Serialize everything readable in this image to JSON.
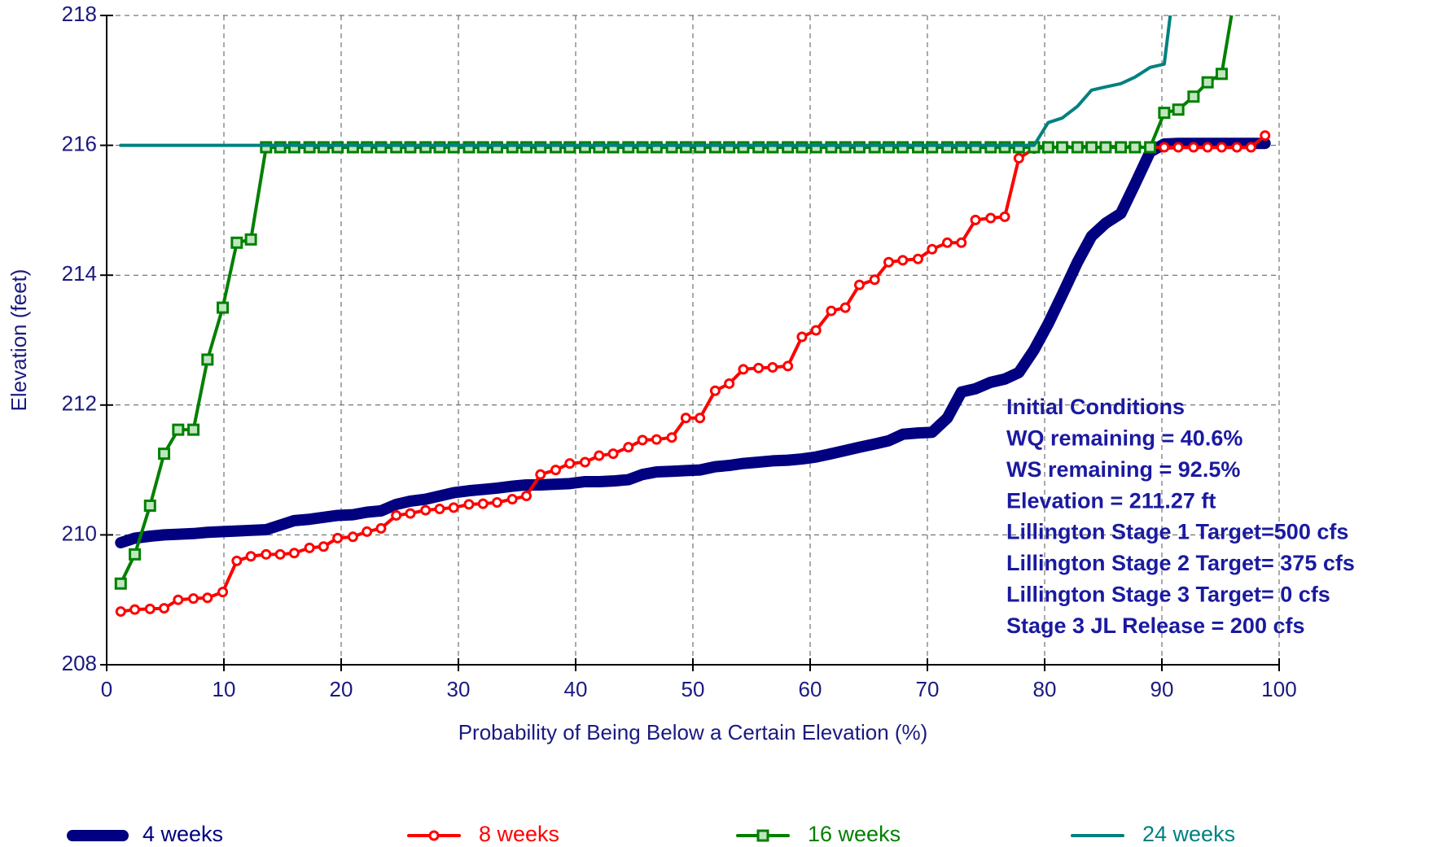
{
  "chart_data": {
    "type": "line",
    "xlabel": "Probability of Being Below a Certain Elevation (%)",
    "ylabel": "Elevation (feet)",
    "xlim": [
      0,
      100
    ],
    "xticks": [
      0,
      10,
      20,
      30,
      40,
      50,
      60,
      70,
      80,
      90,
      100
    ],
    "ylim": [
      208,
      218
    ],
    "yticks": [
      208,
      210,
      212,
      214,
      216,
      218
    ],
    "grid": true,
    "legend": "bottom",
    "annotations": [
      "Initial Conditions",
      "WQ remaining = 40.6%",
      "WS remaining = 92.5%",
      "Elevation = 211.27 ft",
      "Lillington Stage 1 Target=500 cfs",
      "Lillington Stage 2 Target= 375 cfs",
      "Lillington Stage 3 Target= 0 cfs",
      "Stage 3 JL Release = 200 cfs"
    ],
    "x": [
      1.2,
      2.4,
      3.7,
      4.9,
      6.1,
      7.4,
      8.6,
      9.9,
      11.1,
      12.3,
      13.6,
      14.8,
      16.0,
      17.3,
      18.5,
      19.7,
      21.0,
      22.2,
      23.4,
      24.7,
      25.9,
      27.2,
      28.4,
      29.6,
      30.9,
      32.1,
      33.3,
      34.6,
      35.8,
      37.0,
      38.3,
      39.5,
      40.8,
      42.0,
      43.2,
      44.5,
      45.7,
      46.9,
      48.2,
      49.4,
      50.6,
      51.9,
      53.1,
      54.3,
      55.6,
      56.8,
      58.1,
      59.3,
      60.5,
      61.8,
      63.0,
      64.2,
      65.5,
      66.7,
      67.9,
      69.2,
      70.4,
      71.7,
      72.9,
      74.1,
      75.4,
      76.6,
      77.8,
      79.1,
      80.3,
      81.5,
      82.8,
      84.0,
      85.2,
      86.5,
      87.7,
      89.0,
      90.2,
      91.4,
      92.7,
      93.9,
      95.1,
      96.4,
      97.6,
      98.8
    ],
    "series": [
      {
        "name": "4 weeks",
        "color": "#000080",
        "width": 14,
        "marker": "none",
        "values": [
          209.88,
          209.95,
          209.98,
          210.0,
          210.01,
          210.02,
          210.04,
          210.05,
          210.06,
          210.07,
          210.08,
          210.15,
          210.22,
          210.24,
          210.27,
          210.3,
          210.31,
          210.35,
          210.37,
          210.47,
          210.52,
          210.55,
          210.6,
          210.65,
          210.68,
          210.7,
          210.72,
          210.75,
          210.77,
          210.77,
          210.78,
          210.79,
          210.82,
          210.82,
          210.83,
          210.85,
          210.93,
          210.97,
          210.98,
          210.99,
          211.0,
          211.05,
          211.07,
          211.1,
          211.12,
          211.14,
          211.15,
          211.17,
          211.2,
          211.25,
          211.3,
          211.35,
          211.4,
          211.45,
          211.55,
          211.57,
          211.58,
          211.8,
          212.2,
          212.25,
          212.35,
          212.4,
          212.5,
          212.85,
          213.25,
          213.7,
          214.2,
          214.6,
          214.8,
          214.95,
          215.4,
          215.9,
          216.02,
          216.03,
          216.03,
          216.03,
          216.03,
          216.03,
          216.03,
          216.03
        ]
      },
      {
        "name": "8 weeks",
        "color": "#ff0000",
        "width": 4,
        "marker": "circle",
        "values": [
          208.82,
          208.85,
          208.86,
          208.87,
          209.0,
          209.02,
          209.03,
          209.12,
          209.6,
          209.67,
          209.7,
          209.7,
          209.72,
          209.8,
          209.82,
          209.95,
          209.97,
          210.05,
          210.1,
          210.3,
          210.33,
          210.38,
          210.4,
          210.42,
          210.47,
          210.48,
          210.5,
          210.55,
          210.6,
          210.93,
          211.0,
          211.1,
          211.12,
          211.22,
          211.25,
          211.35,
          211.46,
          211.47,
          211.5,
          211.8,
          211.8,
          212.22,
          212.33,
          212.55,
          212.57,
          212.58,
          212.6,
          213.05,
          213.15,
          213.45,
          213.5,
          213.85,
          213.93,
          214.2,
          214.23,
          214.25,
          214.4,
          214.5,
          214.5,
          214.85,
          214.88,
          214.9,
          215.8,
          215.95,
          215.97,
          215.97,
          215.97,
          215.97,
          215.97,
          215.97,
          215.97,
          215.97,
          215.97,
          215.97,
          215.97,
          215.97,
          215.97,
          215.97,
          215.97,
          216.15
        ]
      },
      {
        "name": "16 weeks",
        "color": "#008000",
        "width": 4,
        "marker": "square",
        "values": [
          209.25,
          209.7,
          210.45,
          211.25,
          211.62,
          211.62,
          212.7,
          213.5,
          214.5,
          214.55,
          215.97,
          215.97,
          215.97,
          215.97,
          215.97,
          215.97,
          215.97,
          215.97,
          215.97,
          215.97,
          215.97,
          215.97,
          215.97,
          215.97,
          215.97,
          215.97,
          215.97,
          215.97,
          215.97,
          215.97,
          215.97,
          215.97,
          215.97,
          215.97,
          215.97,
          215.97,
          215.97,
          215.97,
          215.97,
          215.97,
          215.97,
          215.97,
          215.97,
          215.97,
          215.97,
          215.97,
          215.97,
          215.97,
          215.97,
          215.97,
          215.97,
          215.97,
          215.97,
          215.97,
          215.97,
          215.97,
          215.97,
          215.97,
          215.97,
          215.97,
          215.97,
          215.97,
          215.97,
          215.97,
          215.97,
          215.97,
          215.97,
          215.97,
          215.97,
          215.97,
          215.97,
          215.97,
          216.5,
          216.55,
          216.75,
          216.97,
          217.1,
          218.5,
          null,
          null
        ]
      },
      {
        "name": "24 weeks",
        "color": "#008080",
        "width": 4,
        "marker": "none",
        "values": [
          216.0,
          216.0,
          216.0,
          216.0,
          216.0,
          216.0,
          216.0,
          216.0,
          216.0,
          216.0,
          216.0,
          216.0,
          216.0,
          216.0,
          216.0,
          216.0,
          216.0,
          216.0,
          216.0,
          216.0,
          216.0,
          216.0,
          216.0,
          216.0,
          216.0,
          216.0,
          216.0,
          216.0,
          216.0,
          216.0,
          216.0,
          216.0,
          216.0,
          216.0,
          216.0,
          216.0,
          216.0,
          216.0,
          216.0,
          216.0,
          216.0,
          216.0,
          216.0,
          216.0,
          216.0,
          216.0,
          216.0,
          216.0,
          216.0,
          216.0,
          216.0,
          216.0,
          216.0,
          216.0,
          216.0,
          216.0,
          216.0,
          216.0,
          216.0,
          216.0,
          216.0,
          216.0,
          216.0,
          216.0,
          216.35,
          216.42,
          216.6,
          216.85,
          216.9,
          216.95,
          217.05,
          217.2,
          217.25,
          219.0,
          null,
          null,
          null,
          null,
          null,
          null
        ]
      }
    ]
  }
}
